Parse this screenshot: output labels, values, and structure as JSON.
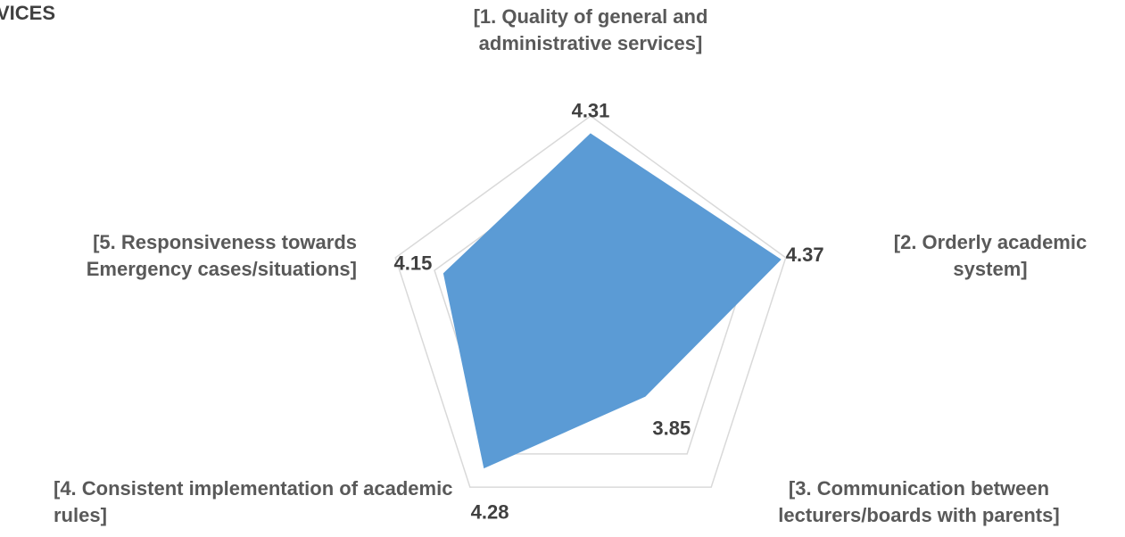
{
  "chart_data": {
    "type": "radar",
    "title": "VICES",
    "categories": [
      "[1. Quality of general and administrative services]",
      "[2. Orderly academic system]",
      "[3. Communication between lecturers/boards with parents]",
      "[4. Consistent implementation of academic rules]",
      "[5. Responsiveness towards Emergency cases/situations]"
    ],
    "values": [
      4.31,
      4.37,
      3.85,
      4.28,
      4.15
    ],
    "color": "#5b9bd5",
    "rlim": [
      3.4,
      4.4
    ],
    "rticks": [
      4.2,
      4.4
    ],
    "grid": true
  }
}
